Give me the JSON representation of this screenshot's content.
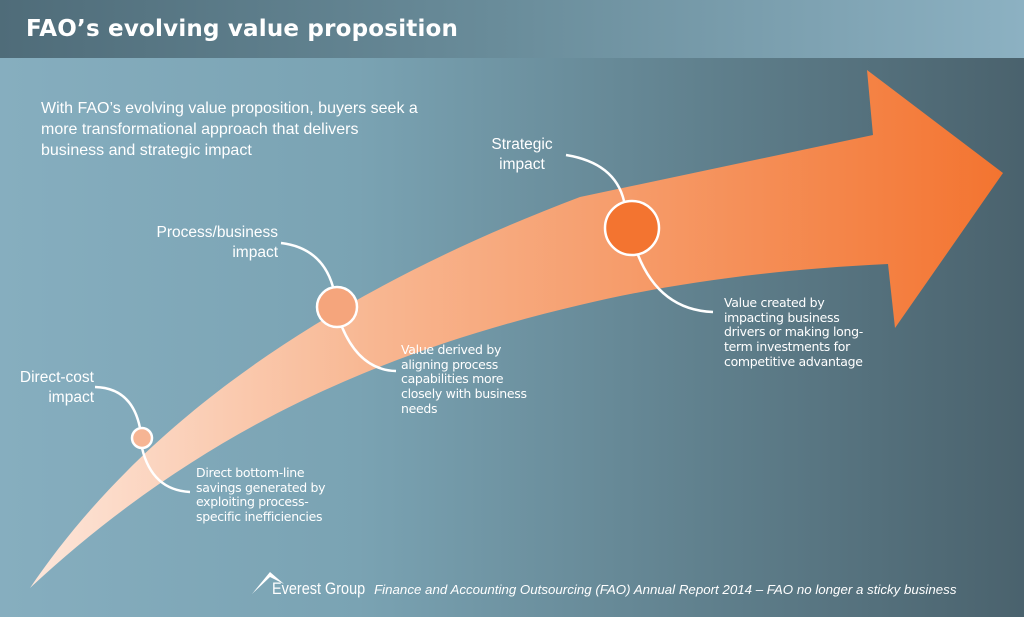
{
  "title": "FAO’s evolving value proposition",
  "intro": "With FAO’s evolving value proposition, buyers seek a more transformational approach that delivers business and strategic impact",
  "stages": [
    {
      "label": [
        "Direct-cost",
        "impact"
      ],
      "description": [
        "Direct bottom-line",
        "savings generated by",
        "exploiting process-",
        "specific inefficiencies"
      ]
    },
    {
      "label": [
        "Process/business",
        "impact"
      ],
      "description": [
        "Value derived by",
        "aligning process",
        "capabilities more",
        "closely with business",
        "needs"
      ]
    },
    {
      "label": [
        "Strategic",
        "impact"
      ],
      "description": [
        "Value created by",
        "impacting business",
        "drivers or making long-",
        "term investments for",
        "competitive advantage"
      ]
    }
  ],
  "footer": {
    "brand": "Everest Group",
    "source": "Finance and Accounting Outsourcing (FAO) Annual Report 2014 – FAO no longer a sticky business"
  },
  "colors": {
    "arrow_start": "#fde3d6",
    "arrow_end": "#f37430",
    "circle_1": "#f6b594",
    "circle_2": "#f5a57c",
    "circle_3": "#f37430"
  }
}
